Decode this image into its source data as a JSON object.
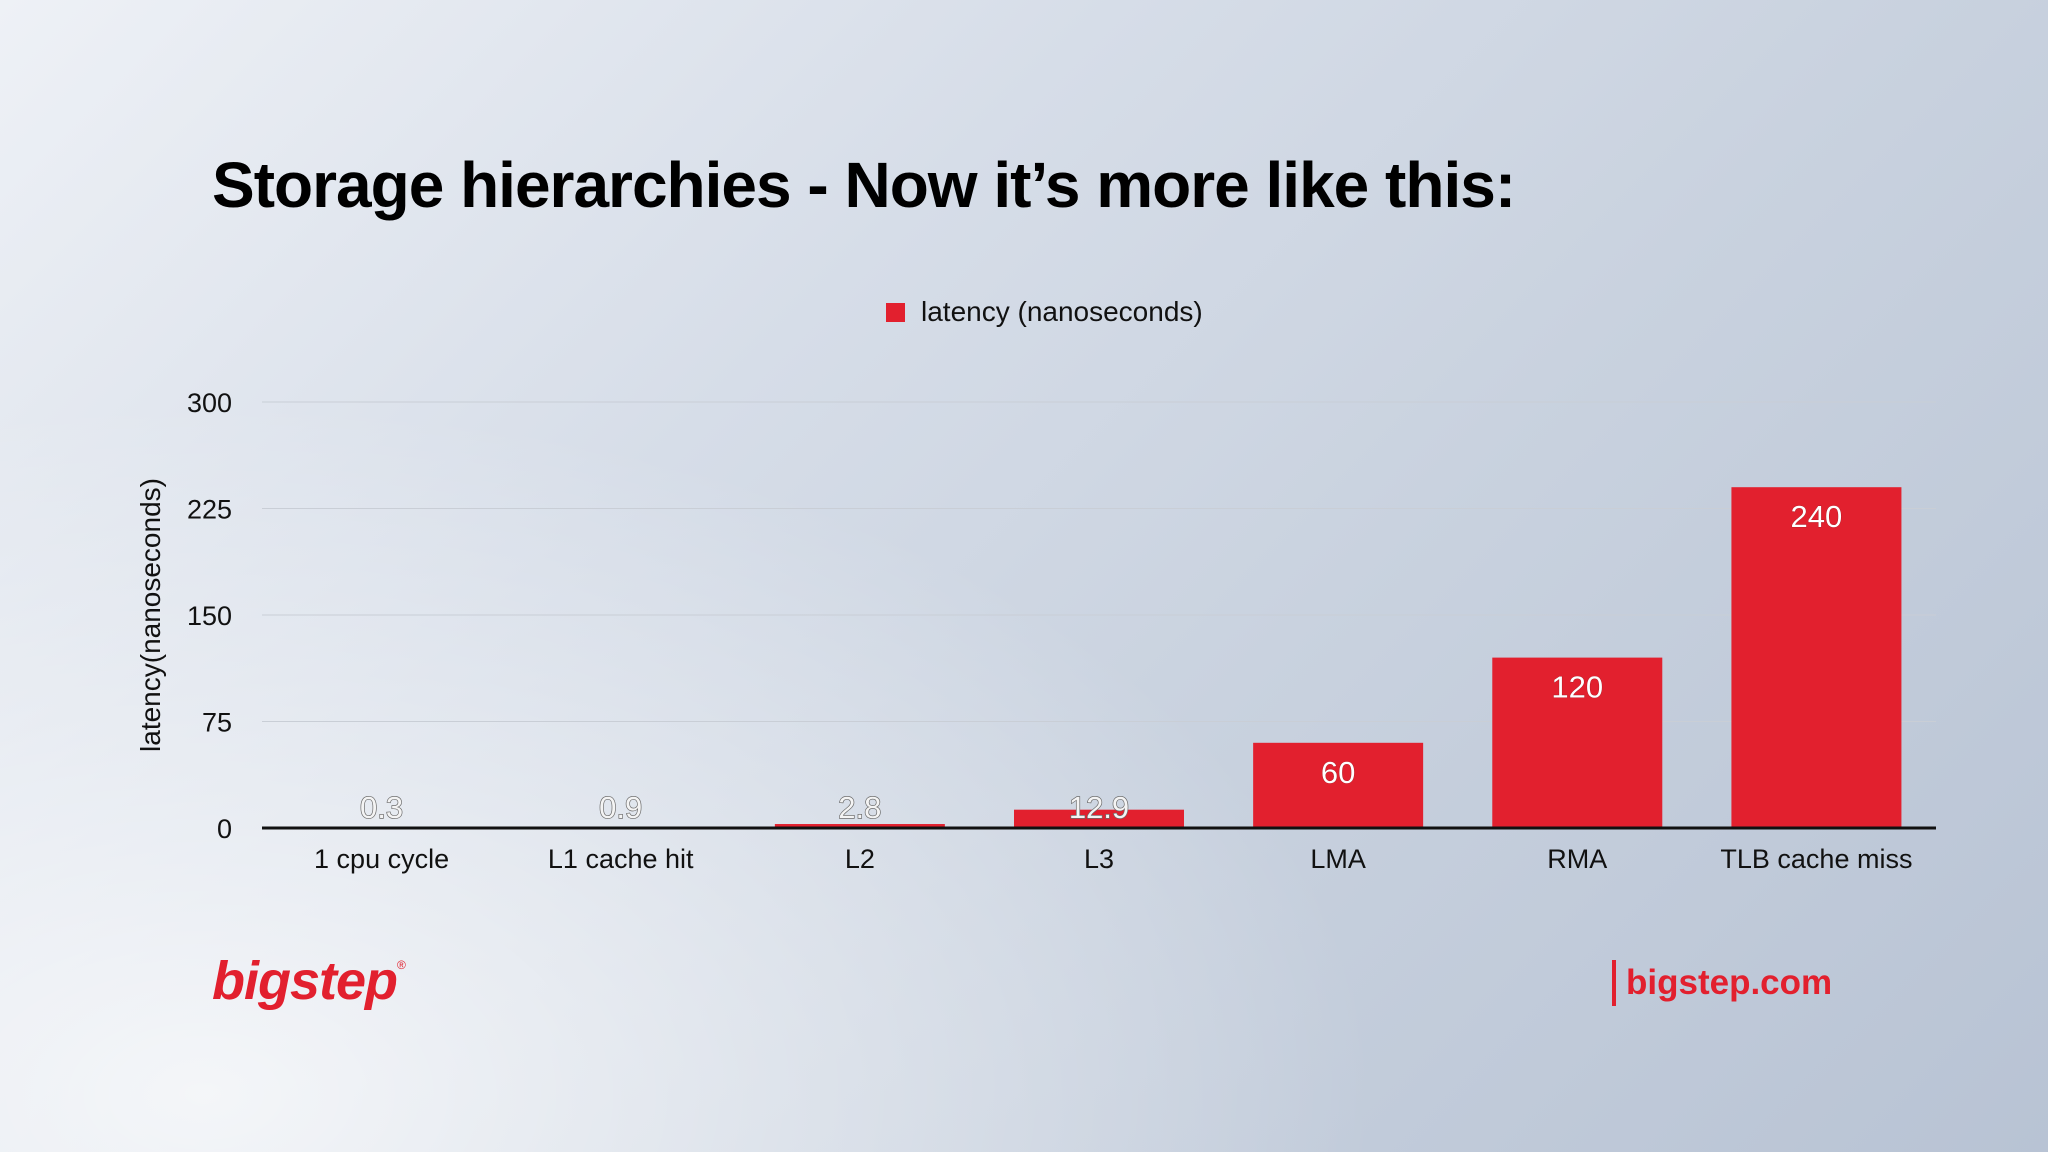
{
  "slide": {
    "title": "Storage hierarchies - Now it’s more like this:"
  },
  "brand": {
    "logo_text": "bigstep",
    "logo_mark": "®",
    "url": "bigstep.com",
    "color": "#e2202e"
  },
  "chart_data": {
    "type": "bar",
    "title": "",
    "categories": [
      "1 cpu cycle",
      "L1 cache hit",
      "L2",
      "L3",
      "LMA",
      "RMA",
      "TLB cache miss"
    ],
    "series": [
      {
        "name": "latency (nanoseconds)",
        "values": [
          0.3,
          0.9,
          2.8,
          12.9,
          60,
          120,
          240
        ],
        "labels": [
          "0.3",
          "0.9",
          "2.8",
          "12.9",
          "60",
          "120",
          "240"
        ]
      }
    ],
    "xlabel": "",
    "ylabel": "latency(nanoseconds)",
    "ylim": [
      0,
      300
    ],
    "yticks": [
      0,
      75,
      150,
      225,
      300
    ],
    "grid": true,
    "legend_position": "top-center",
    "bar_color": "#e2202e"
  }
}
